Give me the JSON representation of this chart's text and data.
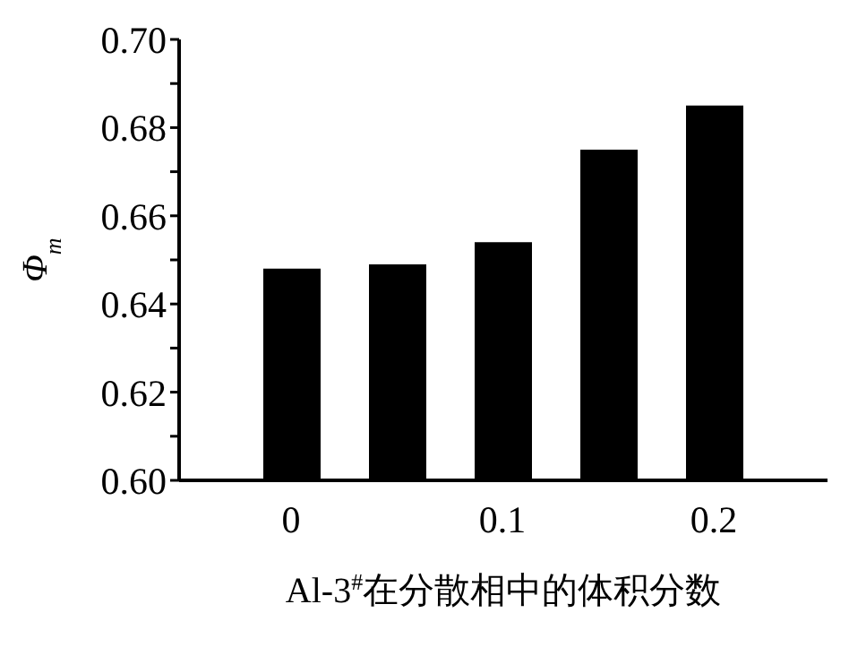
{
  "chart_data": {
    "type": "bar",
    "categories": [
      "0",
      null,
      "0.1",
      null,
      "0.2"
    ],
    "values": [
      0.648,
      0.649,
      0.654,
      0.675,
      0.685
    ],
    "color": "#000000",
    "xlabel": "Al-3$^{#}$在分散相中的体积分数",
    "ylabel": "Φ$_{m}$",
    "ylim": [
      0.6,
      0.7
    ],
    "yticks": [
      {
        "value": 0.6,
        "label": "0.60"
      },
      {
        "value": 0.61,
        "label": null
      },
      {
        "value": 0.62,
        "label": "0.62"
      },
      {
        "value": 0.63,
        "label": null
      },
      {
        "value": 0.64,
        "label": "0.64"
      },
      {
        "value": 0.65,
        "label": null
      },
      {
        "value": 0.66,
        "label": "0.66"
      },
      {
        "value": 0.67,
        "label": null
      },
      {
        "value": 0.68,
        "label": "0.68"
      },
      {
        "value": 0.69,
        "label": null
      },
      {
        "value": 0.7,
        "label": "0.70"
      }
    ],
    "grid": false,
    "legend": false
  }
}
